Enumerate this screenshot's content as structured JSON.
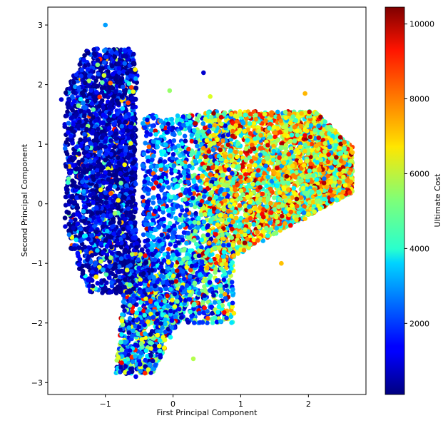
{
  "chart_data": {
    "type": "scatter",
    "title": "",
    "xlabel": "First Principal Component",
    "ylabel": "Second Principal Component",
    "xlim": [
      -1.85,
      2.85
    ],
    "ylim": [
      -3.2,
      3.3
    ],
    "xticks": [
      -1,
      0,
      1,
      2
    ],
    "xtick_labels": [
      "−1",
      "0",
      "1",
      "2"
    ],
    "yticks": [
      -3,
      -2,
      -1,
      0,
      1,
      2,
      3
    ],
    "ytick_labels": [
      "−3",
      "−2",
      "−1",
      "0",
      "1",
      "2",
      "3"
    ],
    "grid": false,
    "legend": "none",
    "colorbar": {
      "label": "Ultimate Cost",
      "colormap": "jet",
      "range": [
        100,
        10450
      ],
      "ticks": [
        2000,
        4000,
        6000,
        8000,
        10000
      ],
      "tick_labels": [
        "2000",
        "4000",
        "6000",
        "8000",
        "10000"
      ]
    },
    "clusters": [
      {
        "description": "dense low-cost band",
        "x_range": [
          -1.6,
          -0.5
        ],
        "y_range": [
          -1.6,
          2.7
        ],
        "cost_range": [
          100,
          2500
        ]
      },
      {
        "description": "lower tail",
        "x_range": [
          -0.9,
          0.3
        ],
        "y_range": [
          -2.9,
          -1.0
        ],
        "cost_range": [
          300,
          7500
        ]
      },
      {
        "description": "mixed middle region",
        "x_range": [
          -0.4,
          0.9
        ],
        "y_range": [
          -2.0,
          1.6
        ],
        "cost_range": [
          500,
          7000
        ]
      },
      {
        "description": "high-cost right wing",
        "x_range": [
          0.5,
          2.7
        ],
        "y_range": [
          -1.3,
          1.9
        ],
        "cost_range": [
          3500,
          10450
        ]
      }
    ],
    "points": [
      {
        "x": -1.0,
        "y": 3.0,
        "cost": 3000
      },
      {
        "x": 0.45,
        "y": 2.2,
        "cost": 900
      },
      {
        "x": 2.65,
        "y": 0.95,
        "cost": 8500
      },
      {
        "x": -0.55,
        "y": -2.9,
        "cost": 1200
      },
      {
        "x": 0.3,
        "y": -2.6,
        "cost": 5800
      },
      {
        "x": 1.6,
        "y": -1.0,
        "cost": 7200
      },
      {
        "x": 1.95,
        "y": 1.85,
        "cost": 7300
      },
      {
        "x": -1.65,
        "y": 1.75,
        "cost": 900
      },
      {
        "x": -0.05,
        "y": 1.9,
        "cost": 5500
      },
      {
        "x": 0.55,
        "y": 1.8,
        "cost": 6200
      },
      {
        "x": 2.55,
        "y": 0.8,
        "cost": 7500
      },
      {
        "x": 1.95,
        "y": -0.25,
        "cost": 7000
      }
    ]
  }
}
